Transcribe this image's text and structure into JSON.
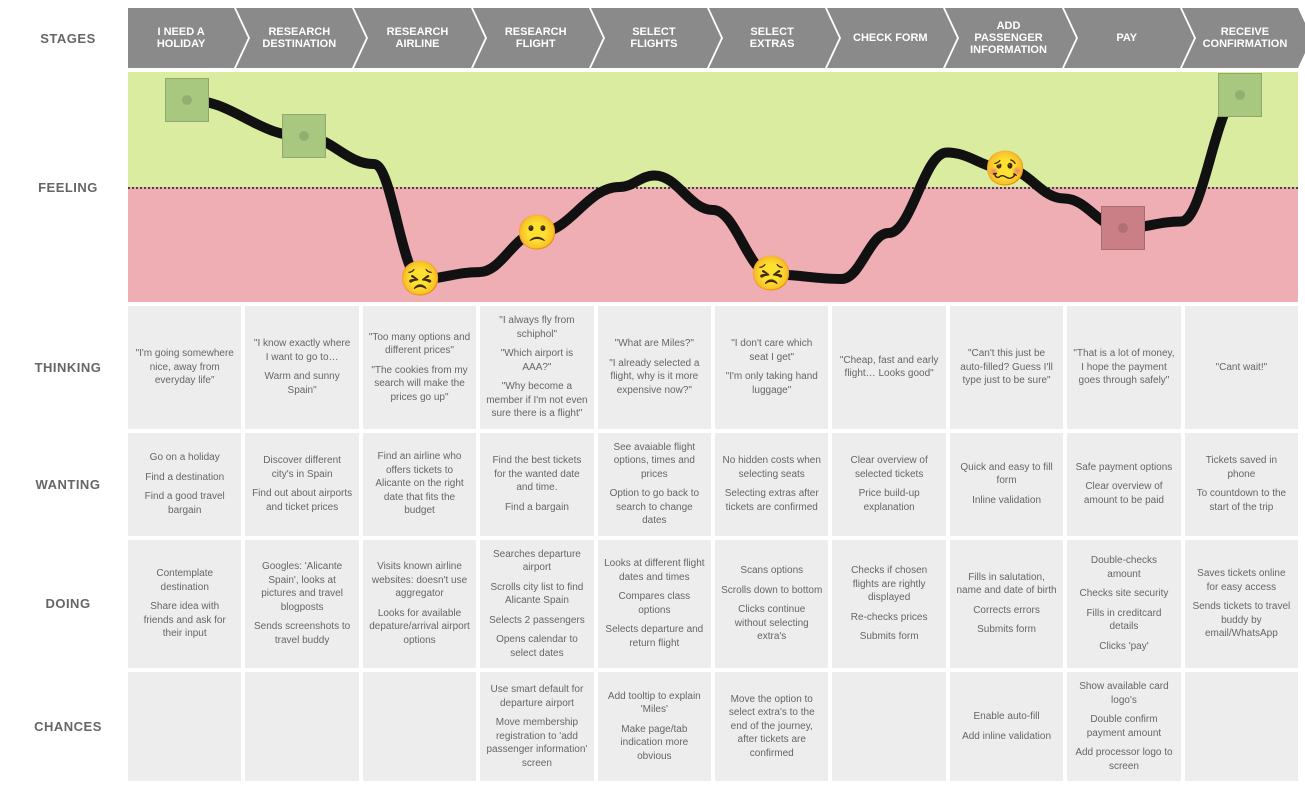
{
  "colors": {
    "stage_bg": "#8a8a8a",
    "stage_text": "#ffffff",
    "cell_bg": "#ededed",
    "cell_text": "#666666",
    "feeling_positive_bg": "#d9ec9f",
    "feeling_negative_bg": "#eeaeb3",
    "line_color": "#111111",
    "box_green": "#a8c77f",
    "box_red": "#c97f85"
  },
  "labels": {
    "stages": "STAGES",
    "feeling": "FEELING",
    "thinking": "THINKING",
    "wanting": "WANTING",
    "doing": "DOING",
    "chances": "CHANCES"
  },
  "stages": [
    "I NEED A HOLIDAY",
    "RESEARCH DESTINATION",
    "RESEARCH AIRLINE",
    "RESEARCH FLIGHT",
    "SELECT FLIGHTS",
    "SELECT EXTRAS",
    "CHECK FORM",
    "ADD PASSENGER INFORMATION",
    "PAY",
    "RECEIVE CONFIRMATION"
  ],
  "feeling": {
    "curve_points": [
      {
        "stage": 0,
        "v": 0.88
      },
      {
        "stage": 1,
        "v": 0.72
      },
      {
        "stage": 1.6,
        "v": 0.6
      },
      {
        "stage": 2.0,
        "v": 0.1
      },
      {
        "stage": 2.5,
        "v": 0.13
      },
      {
        "stage": 3.0,
        "v": 0.3
      },
      {
        "stage": 3.7,
        "v": 0.5
      },
      {
        "stage": 4.0,
        "v": 0.55
      },
      {
        "stage": 4.5,
        "v": 0.4
      },
      {
        "stage": 5.0,
        "v": 0.12
      },
      {
        "stage": 5.6,
        "v": 0.1
      },
      {
        "stage": 6.0,
        "v": 0.3
      },
      {
        "stage": 6.5,
        "v": 0.65
      },
      {
        "stage": 7.0,
        "v": 0.58
      },
      {
        "stage": 7.5,
        "v": 0.45
      },
      {
        "stage": 8.0,
        "v": 0.32
      },
      {
        "stage": 8.5,
        "v": 0.35
      },
      {
        "stage": 9.0,
        "v": 0.9
      }
    ],
    "line_width": 2.5,
    "markers": [
      {
        "stage": 0,
        "v": 0.88,
        "type": "box",
        "color_key": "box_green"
      },
      {
        "stage": 1,
        "v": 0.72,
        "type": "box",
        "color_key": "box_green"
      },
      {
        "stage": 2,
        "v": 0.1,
        "type": "emoji",
        "glyph": "😣"
      },
      {
        "stage": 3,
        "v": 0.3,
        "type": "emoji",
        "glyph": "🙁"
      },
      {
        "stage": 5,
        "v": 0.12,
        "type": "emoji",
        "glyph": "😣"
      },
      {
        "stage": 7,
        "v": 0.58,
        "type": "emoji",
        "glyph": "🥴"
      },
      {
        "stage": 8,
        "v": 0.32,
        "type": "box",
        "color_key": "box_red"
      },
      {
        "stage": 9,
        "v": 0.9,
        "type": "box",
        "color_key": "box_green"
      }
    ]
  },
  "thinking": [
    [
      "\"I'm going somewhere nice, away from everyday life\""
    ],
    [
      "\"I know exactly where I want to go to…",
      "Warm and sunny Spain\""
    ],
    [
      "\"Too many options and different prices\"",
      "\"The cookies from my search will make the prices go up\""
    ],
    [
      "\"I always fly from schiphol\"",
      "\"Which airport is AAA?\"",
      "\"Why become a member if I'm not even sure there is a flight\""
    ],
    [
      "\"What are Miles?\"",
      "\"I already selected a flight, why is it more expensive now?\""
    ],
    [
      "\"I don't care which seat I get\"",
      "\"I'm only taking hand luggage\""
    ],
    [
      "\"Cheap, fast and early flight… Looks good\""
    ],
    [
      "\"Can't this just be auto-filled? Guess I'll type just to be sure\""
    ],
    [
      "\"That is a lot of money, I hope the payment goes through safely\""
    ],
    [
      "\"Cant wait!\""
    ]
  ],
  "wanting": [
    [
      "Go on a holiday",
      "Find a destination",
      "Find a good travel bargain"
    ],
    [
      "Discover different city's in Spain",
      "Find out about airports and ticket prices"
    ],
    [
      "Find an airline who offers tickets to Alicante on the right date that fits the budget"
    ],
    [
      "Find the best tickets for the wanted date and time.",
      "Find a bargain"
    ],
    [
      "See avaiable flight options, times and prices",
      "Option to go back to search to change dates"
    ],
    [
      "No hidden costs when selecting seats",
      "Selecting extras after tickets are confirmed"
    ],
    [
      "Clear overview of selected tickets",
      "Price build-up explanation"
    ],
    [
      "Quick and easy to fill form",
      "Inline validation"
    ],
    [
      "Safe payment options",
      "Clear overview of amount to be paid"
    ],
    [
      "Tickets saved in phone",
      "To countdown to the start of the trip"
    ]
  ],
  "doing": [
    [
      "Contemplate destination",
      "Share idea with friends and ask for their input"
    ],
    [
      "Googles: 'Alicante Spain', looks at pictures and travel blogposts",
      "Sends screenshots to travel buddy"
    ],
    [
      "Visits known airline websites: doesn't use aggregator",
      "Looks for available depature/arrival airport options"
    ],
    [
      "Searches departure airport",
      "Scrolls city list to find Alicante Spain",
      "Selects 2 passengers",
      "Opens calendar to select dates"
    ],
    [
      "Looks at different flight dates and times",
      "Compares class options",
      "Selects departure and return flight"
    ],
    [
      "Scans options",
      "Scrolls down to bottom",
      "Clicks continue without selecting extra's"
    ],
    [
      "Checks if chosen flights are rightly displayed",
      "Re-checks prices",
      "Submits form"
    ],
    [
      "Fills in salutation, name and date of birth",
      "Corrects errors",
      "Submits form"
    ],
    [
      "Double-checks amount",
      "Checks site security",
      "Fills in creditcard details",
      "Clicks 'pay'"
    ],
    [
      "Saves tickets online for easy access",
      "Sends tickets to travel buddy by email/WhatsApp"
    ]
  ],
  "chances": [
    [],
    [],
    [],
    [
      "Use smart default for departure airport",
      "Move membership registration to 'add passenger information' screen"
    ],
    [
      "Add tooltip to explain 'Miles'",
      "Make page/tab indication more obvious"
    ],
    [
      "Move the option to select extra's to the end of the journey, after tickets are confirmed"
    ],
    [],
    [
      "Enable auto-fill",
      "Add inline validation"
    ],
    [
      "Show available card logo's",
      "Double confirm payment amount",
      "Add processor logo to screen"
    ],
    []
  ]
}
